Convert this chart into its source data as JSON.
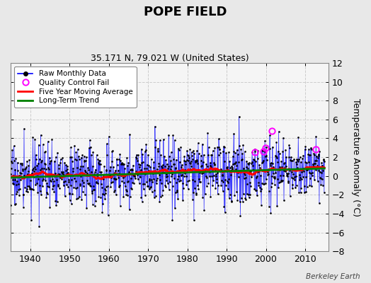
{
  "title": "POPE FIELD",
  "subtitle": "35.171 N, 79.021 W (United States)",
  "ylabel": "Temperature Anomaly (°C)",
  "watermark": "Berkeley Earth",
  "start_year": 1935,
  "end_year": 2014,
  "ylim": [
    -8,
    12
  ],
  "yticks": [
    -8,
    -6,
    -4,
    -2,
    0,
    2,
    4,
    6,
    8,
    10,
    12
  ],
  "xlim": [
    1935,
    2016
  ],
  "xticks": [
    1940,
    1950,
    1960,
    1970,
    1980,
    1990,
    2000,
    2010
  ],
  "fig_bg": "#e8e8e8",
  "plot_bg": "#f5f5f5",
  "grid_color": "#cccccc",
  "legend_labels": [
    "Raw Monthly Data",
    "Quality Control Fail",
    "Five Year Moving Average",
    "Long-Term Trend"
  ],
  "qc_years": [
    1997.2,
    1999.3,
    1999.9,
    2001.5,
    2012.7
  ],
  "qc_vals": [
    2.5,
    2.6,
    3.0,
    4.8,
    2.8
  ]
}
